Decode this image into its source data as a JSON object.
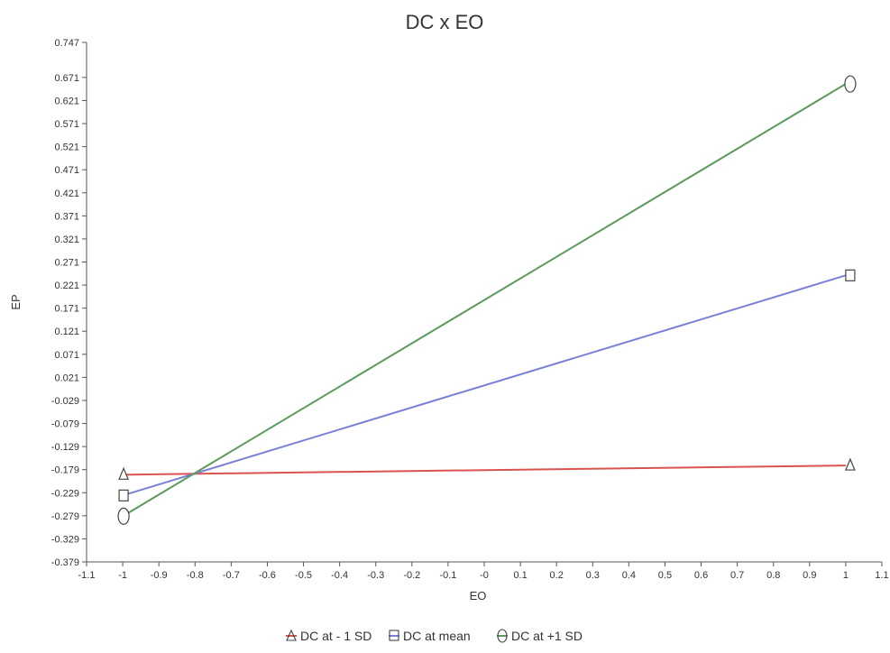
{
  "chart_data": {
    "type": "line",
    "title": "DC x EO",
    "xlabel": "EO",
    "ylabel": "EP",
    "xlim": [
      -1.1,
      1.1
    ],
    "ylim": [
      -0.379,
      0.747
    ],
    "x_ticks": [
      "-1.1",
      "-1",
      "-0.9",
      "-0.8",
      "-0.7",
      "-0.6",
      "-0.5",
      "-0.4",
      "-0.3",
      "-0.2",
      "-0.1",
      "-0",
      "0.1",
      "0.2",
      "0.3",
      "0.4",
      "0.5",
      "0.6",
      "0.7",
      "0.8",
      "0.9",
      "1",
      "1.1"
    ],
    "y_ticks": [
      "0.747",
      "0.671",
      "0.621",
      "0.571",
      "0.521",
      "0.471",
      "0.421",
      "0.371",
      "0.321",
      "0.271",
      "0.221",
      "0.171",
      "0.121",
      "0.071",
      "0.021",
      "-0.029",
      "-0.079",
      "-0.129",
      "-0.179",
      "-0.229",
      "-0.279",
      "-0.329",
      "-0.379"
    ],
    "grid": false,
    "legend_position": "bottom",
    "series": [
      {
        "name": "DC at - 1 SD",
        "color": "#d9534f",
        "marker": "triangle",
        "x": [
          -1,
          1
        ],
        "y": [
          -0.19,
          -0.17
        ]
      },
      {
        "name": "DC at mean",
        "color": "#7a80d6",
        "marker": "square",
        "x": [
          -1,
          1
        ],
        "y": [
          -0.235,
          0.242
        ]
      },
      {
        "name": "DC at +1 SD",
        "color": "#5a9a5a",
        "marker": "ellipse",
        "x": [
          -1,
          1
        ],
        "y": [
          -0.28,
          0.657
        ]
      }
    ]
  }
}
